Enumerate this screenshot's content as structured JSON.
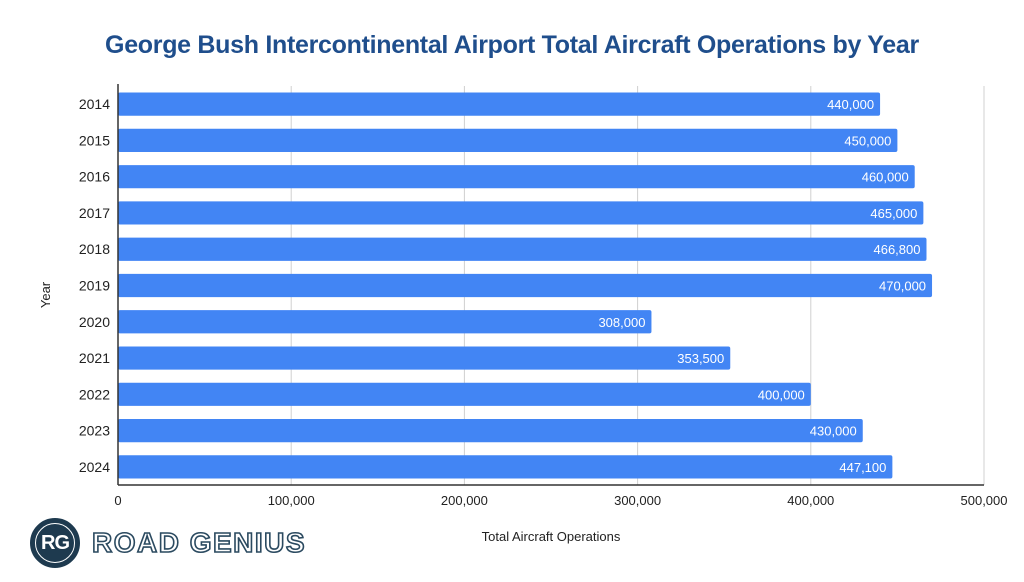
{
  "chart_data": {
    "type": "bar",
    "orientation": "horizontal",
    "title": "George Bush Intercontinental Airport Total Aircraft Operations by Year",
    "xlabel": "Total Aircraft Operations",
    "ylabel": "Year",
    "categories": [
      "2014",
      "2015",
      "2016",
      "2017",
      "2018",
      "2019",
      "2020",
      "2021",
      "2022",
      "2023",
      "2024"
    ],
    "values": [
      440000,
      450000,
      460000,
      465000,
      466800,
      470000,
      308000,
      353500,
      400000,
      430000,
      447100
    ],
    "data_labels": [
      "440,000",
      "450,000",
      "460,000",
      "465,000",
      "466,800",
      "470,000",
      "308,000",
      "353,500",
      "400,000",
      "430,000",
      "447,100"
    ],
    "xlim": [
      0,
      500000
    ],
    "xticks": [
      0,
      100000,
      200000,
      300000,
      400000,
      500000
    ],
    "xtick_labels": [
      "0",
      "100,000",
      "200,000",
      "300,000",
      "400,000",
      "500,000"
    ],
    "grid": true,
    "bar_color": "#4285f4",
    "title_color": "#1f4e8c"
  },
  "logo": {
    "badge": "RG",
    "text": "ROAD GENIUS"
  }
}
